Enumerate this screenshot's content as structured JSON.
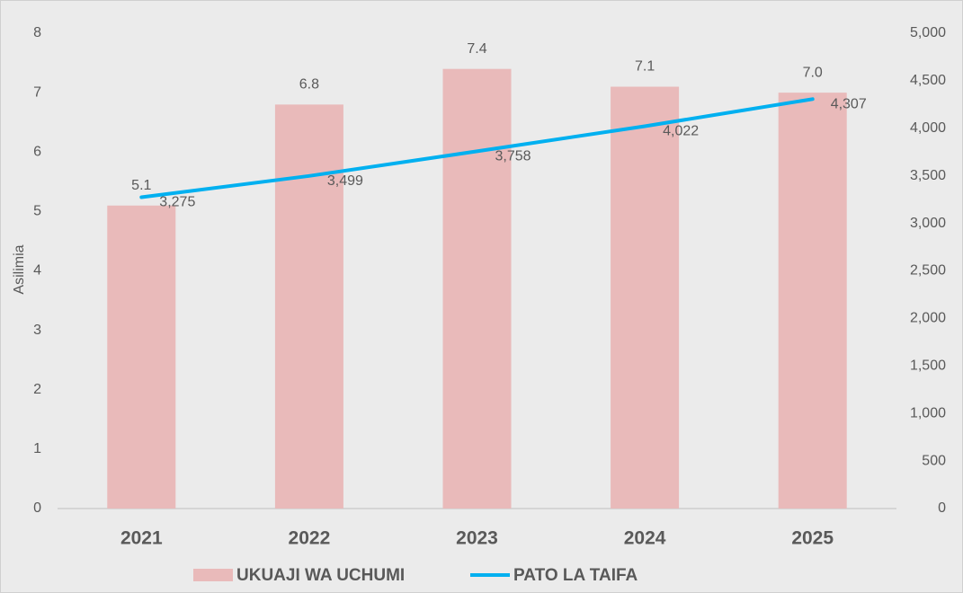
{
  "chart_data": {
    "type": "bar_line",
    "categories": [
      "2021",
      "2022",
      "2023",
      "2024",
      "2025"
    ],
    "ylabel": "Asilimia",
    "ylim": [
      0,
      8
    ],
    "yticks": [
      0,
      1,
      2,
      3,
      4,
      5,
      6,
      7,
      8
    ],
    "y2lim": [
      0,
      5000
    ],
    "y2ticks": [
      0,
      500,
      {
        "value": 1000,
        "label": "1,000"
      },
      {
        "value": 1500,
        "label": "1,500"
      },
      {
        "value": 2000,
        "label": "2,000"
      },
      {
        "value": 2500,
        "label": "2,500"
      },
      {
        "value": 3000,
        "label": "3,000"
      },
      {
        "value": 3500,
        "label": "3,500"
      },
      {
        "value": 4000,
        "label": "4,000"
      },
      {
        "value": 4500,
        "label": "4,500"
      },
      {
        "value": 5000,
        "label": "5,000"
      }
    ],
    "series": [
      {
        "name": "UKUAJI WA UCHUMI",
        "type": "bar",
        "color": "#e9baba",
        "values": [
          5.1,
          6.8,
          7.4,
          7.1,
          7.0
        ],
        "value_labels": [
          "5.1",
          "6.8",
          "7.4",
          "7.1",
          "7.0"
        ]
      },
      {
        "name": "PATO LA TAIFA",
        "type": "line",
        "axis": "y2",
        "color": "#00b0f0",
        "values": [
          3275,
          3499,
          3758,
          4022,
          4307
        ],
        "value_labels": [
          "3,275",
          "3,499",
          "3,758",
          "4,022",
          "4,307"
        ]
      }
    ]
  }
}
